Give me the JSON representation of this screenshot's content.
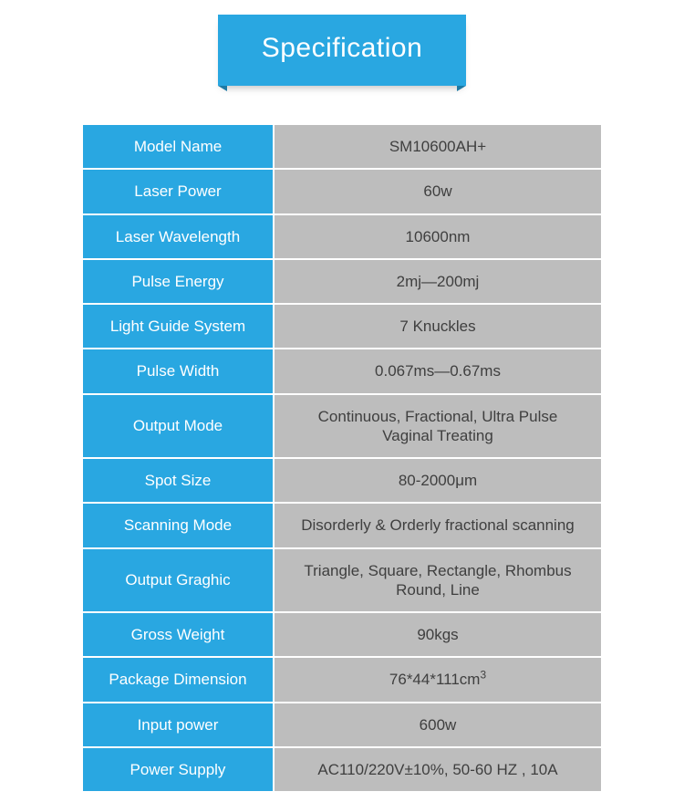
{
  "banner": {
    "title": "Specification",
    "bg_color": "#29a7e1",
    "fold_color": "#1e7aa5"
  },
  "table": {
    "label_bg": "#29a7e1",
    "label_fg": "#ffffff",
    "value_bg": "#bdbdbd",
    "value_fg": "#3f3f3f",
    "rows": [
      {
        "label": "Model Name",
        "value": "SM10600AH+"
      },
      {
        "label": "Laser Power",
        "value": "60w"
      },
      {
        "label": "Laser Wavelength",
        "value": "10600nm"
      },
      {
        "label": "Pulse Energy",
        "value": "2mj—200mj"
      },
      {
        "label": "Light Guide System",
        "value": "7 Knuckles"
      },
      {
        "label": "Pulse Width",
        "value": "0.067ms—0.67ms"
      },
      {
        "label": "Output Mode",
        "value": "Continuous, Fractional, Ultra Pulse\nVaginal Treating"
      },
      {
        "label": "Spot Size",
        "value": "80-2000μm"
      },
      {
        "label": "Scanning Mode",
        "value": "Disorderly & Orderly fractional scanning"
      },
      {
        "label": "Output Graghic",
        "value": "Triangle, Square, Rectangle, Rhombus\nRound, Line"
      },
      {
        "label": "Gross Weight",
        "value": "90kgs"
      },
      {
        "label": "Package Dimension",
        "value": "76*44*111cm",
        "value_sup": "3"
      },
      {
        "label": "Input power",
        "value": "600w"
      },
      {
        "label": "Power Supply",
        "value": "AC110/220V±10%, 50-60 HZ , 10A"
      }
    ]
  }
}
